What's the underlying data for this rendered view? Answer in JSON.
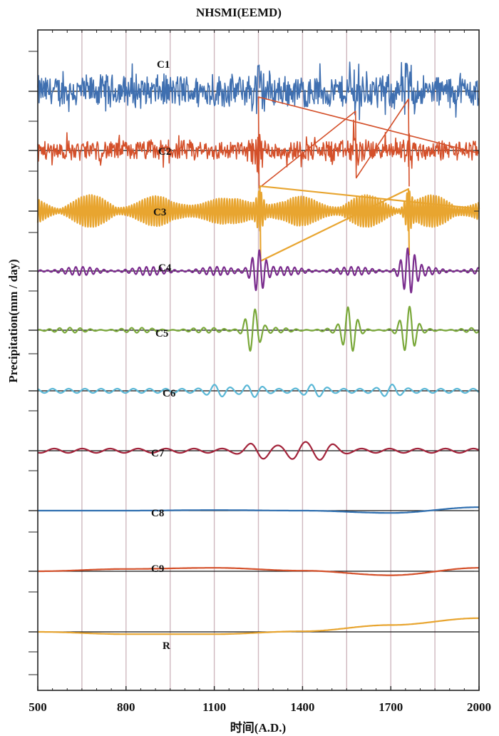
{
  "chart_data": {
    "type": "line",
    "title": "NHSMI(EEMD)",
    "xlabel": "时间(A.D.)",
    "ylabel": "Precipitation(mm / day)",
    "xlim": [
      500,
      2000
    ],
    "x_ticks": [
      500,
      800,
      1100,
      1400,
      1700,
      2000
    ],
    "x_gridlines": [
      650,
      800,
      950,
      1100,
      1250,
      1400,
      1550,
      1700,
      1850
    ],
    "grid": "vertical",
    "legend": "none",
    "series": [
      {
        "name": "C1",
        "color": "#3f6fb0",
        "kind": "noise",
        "amplitude": "high"
      },
      {
        "name": "C2",
        "color": "#d4502a",
        "kind": "noise",
        "amplitude": "medium",
        "spikes_x": [
          1250,
          1580,
          1760
        ]
      },
      {
        "name": "C3",
        "color": "#e8a530",
        "kind": "oscillation",
        "spikes_x": [
          1255,
          1760
        ]
      },
      {
        "name": "C4",
        "color": "#7b2d8e",
        "kind": "oscillation",
        "bursts_x": [
          1250,
          1760
        ]
      },
      {
        "name": "C5",
        "color": "#7aa83a",
        "kind": "oscillation",
        "bursts_x": [
          1230,
          1560,
          1760
        ]
      },
      {
        "name": "C6",
        "color": "#5ab7d6",
        "kind": "oscillation"
      },
      {
        "name": "C7",
        "color": "#a3243b",
        "kind": "oscillation"
      },
      {
        "name": "C8",
        "color": "#2f6fb0",
        "kind": "trend",
        "x": [
          500,
          800,
          1100,
          1400,
          1700,
          2000
        ],
        "y": [
          0,
          0,
          0.1,
          0,
          -0.4,
          0.6
        ]
      },
      {
        "name": "C9",
        "color": "#d4502a",
        "kind": "trend",
        "x": [
          500,
          800,
          1100,
          1400,
          1700,
          2000
        ],
        "y": [
          0,
          0.4,
          0.6,
          0.1,
          -0.7,
          0.6
        ]
      },
      {
        "name": "R",
        "color": "#e8a530",
        "kind": "trend",
        "x": [
          500,
          800,
          1100,
          1400,
          1700,
          2000
        ],
        "y": [
          0,
          -0.4,
          -0.4,
          0.1,
          1.2,
          2.4
        ]
      }
    ]
  }
}
